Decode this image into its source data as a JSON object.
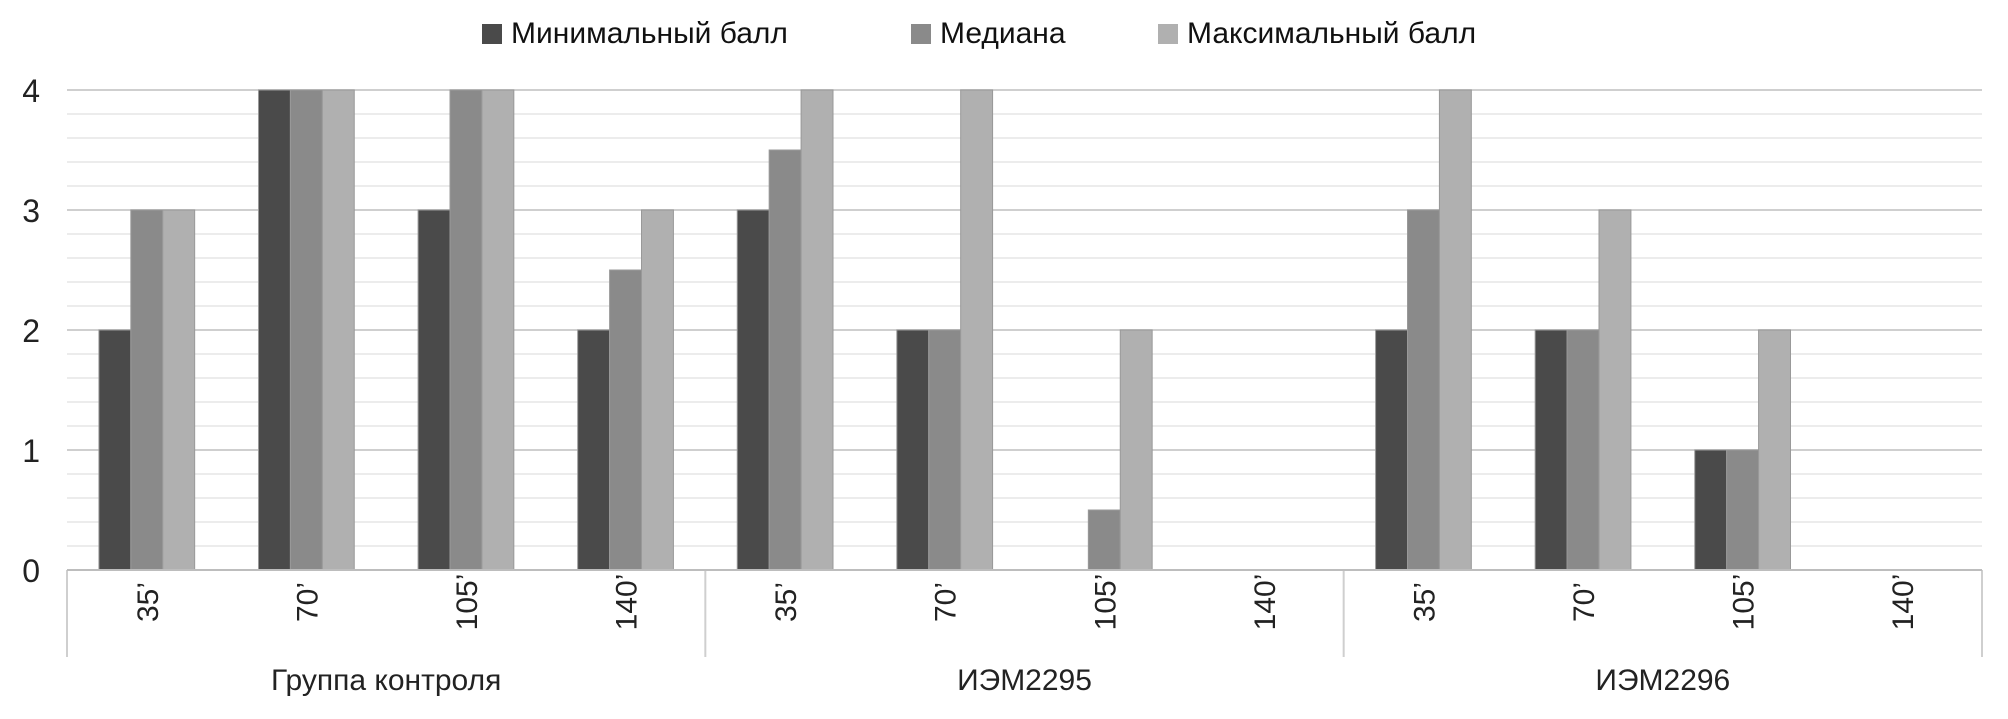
{
  "chart_data": {
    "type": "bar",
    "title": "",
    "xlabel": "",
    "ylabel": "",
    "ylim": [
      0,
      4
    ],
    "yticks": [
      "0",
      "1",
      "2",
      "3",
      "4"
    ],
    "grid": true,
    "legend_position": "top",
    "groups": [
      {
        "label": "Группа контроля",
        "categories": [
          "35’",
          "70’",
          "105’",
          "140’"
        ]
      },
      {
        "label": "ИЭМ2295",
        "categories": [
          "35’",
          "70’",
          "105’",
          "140’"
        ]
      },
      {
        "label": "ИЭМ2296",
        "categories": [
          "35’",
          "70’",
          "105’",
          "140’"
        ]
      }
    ],
    "series": [
      {
        "name": "Минимальный балл",
        "color": "#4a4a4a",
        "values": [
          2,
          4,
          3,
          2,
          3,
          2,
          0,
          0,
          2,
          2,
          1,
          0
        ]
      },
      {
        "name": "Медиана",
        "color": "#8a8a8a",
        "values": [
          3,
          4,
          4,
          2.5,
          3.5,
          2,
          0.5,
          0,
          3,
          2,
          1,
          0
        ]
      },
      {
        "name": "Максимальный балл",
        "color": "#b0b0b0",
        "values": [
          3,
          4,
          4,
          3,
          4,
          4,
          2,
          0,
          4,
          3,
          2,
          0
        ]
      }
    ]
  }
}
